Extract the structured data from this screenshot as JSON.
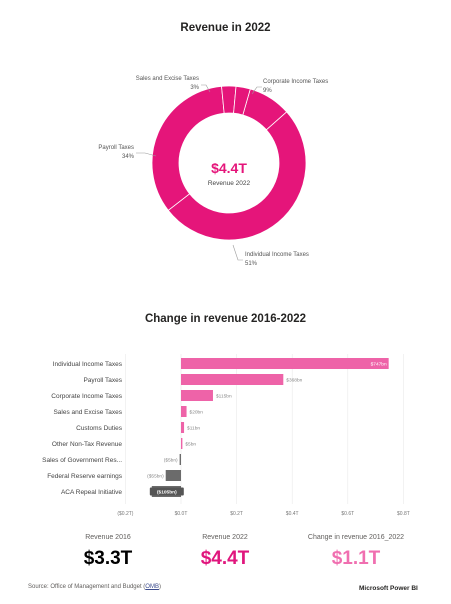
{
  "donut": {
    "title": "Revenue in 2022",
    "center_value": "$4.4T",
    "center_label": "Revenue 2022",
    "labels": [
      {
        "name": "Sales and Excise Taxes",
        "pct": "3%"
      },
      {
        "name": "Corporate Income Taxes",
        "pct": "9%"
      },
      {
        "name": "Payroll Taxes",
        "pct": "34%"
      },
      {
        "name": "Individual Income Taxes",
        "pct": "51%"
      }
    ]
  },
  "bars": {
    "title": "Change in revenue 2016-2022",
    "x_ticks": [
      "($0.2T)",
      "$0.0T",
      "$0.2T",
      "$0.4T",
      "$0.6T",
      "$0.8T"
    ]
  },
  "kpis": [
    {
      "label": "Revenue 2016",
      "value": "$3.3T"
    },
    {
      "label": "Revenue 2022",
      "value": "$4.4T"
    },
    {
      "label": "Change in revenue 2016_2022",
      "value": "$1.1T"
    }
  ],
  "footer": {
    "source_prefix": "Source: Office of Management and Budget (",
    "source_link": "OMB",
    "source_suffix": ")",
    "brand": "Microsoft Power BI"
  },
  "colors": {
    "pink": "#e5157a",
    "bar_pink": "#ee63a8",
    "negative": "#6b6b6b",
    "kpi_2016": "#000000",
    "kpi_2022": "#e0167d",
    "kpi_change": "#f06fb0"
  },
  "chart_data": [
    {
      "type": "pie",
      "title": "Revenue in 2022",
      "categories": [
        "Individual Income Taxes",
        "Payroll Taxes",
        "Corporate Income Taxes",
        "Sales and Excise Taxes",
        "Other"
      ],
      "values": [
        51,
        34,
        9,
        3,
        3
      ]
    },
    {
      "type": "bar",
      "orientation": "horizontal",
      "title": "Change in revenue 2016-2022",
      "categories": [
        "Individual Income Taxes",
        "Payroll Taxes",
        "Corporate Income Taxes",
        "Sales and Excise Taxes",
        "Customs Duties",
        "Other Non-Tax Revenue",
        "Sales of Government Res...",
        "Federal Reserve earnings",
        "ACA Repeal Initiative"
      ],
      "values": [
        747,
        368,
        115,
        20,
        11,
        5,
        -5,
        -55,
        -105
      ],
      "value_labels": [
        "$747bn",
        "$368bn",
        "$115bn",
        "$20bn",
        "$11bn",
        "$5bn",
        "($5bn)",
        "($55bn)",
        "($105bn)"
      ],
      "xlim": [
        -0.2,
        0.8
      ],
      "x_unit": "trillion USD"
    }
  ]
}
